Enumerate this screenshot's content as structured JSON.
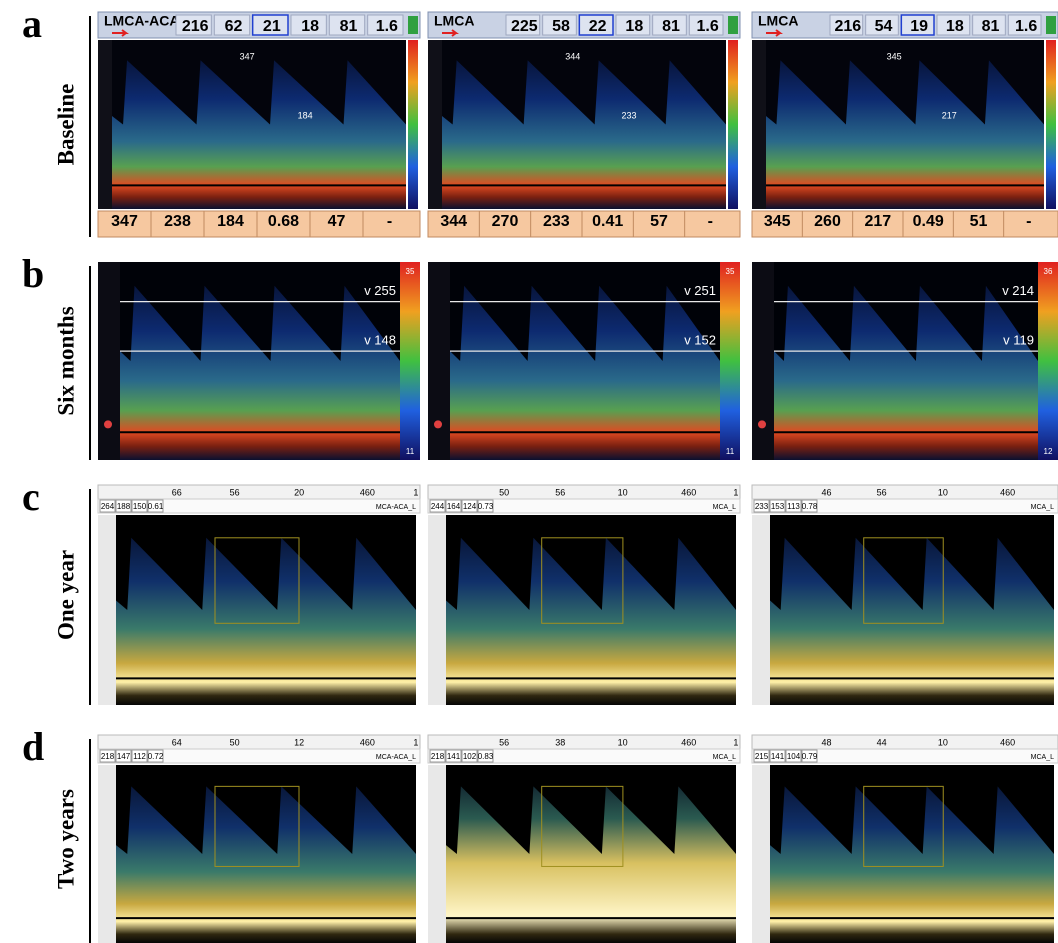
{
  "rows": [
    {
      "letter": "a",
      "label": "Baseline",
      "panels": [
        {
          "probe": "LMCA-ACA",
          "header": [
            216,
            62,
            21,
            18,
            81,
            1.6
          ],
          "footer": [
            347,
            238,
            184,
            0.68,
            47,
            "-"
          ],
          "marks": [
            347,
            184
          ]
        },
        {
          "probe": "LMCA",
          "header": [
            225,
            58,
            22,
            18,
            81,
            1.6
          ],
          "footer": [
            344,
            270,
            233,
            0.41,
            57,
            "-"
          ],
          "marks": [
            344,
            233
          ]
        },
        {
          "probe": "LMCA",
          "header": [
            216,
            54,
            19,
            18,
            81,
            1.6
          ],
          "footer": [
            345,
            260,
            217,
            0.49,
            51,
            "-"
          ],
          "marks": [
            345,
            217
          ]
        }
      ]
    },
    {
      "letter": "b",
      "label": "Six months",
      "panels": [
        {
          "lines": [
            "v 255",
            "v 148"
          ],
          "scale": [
            35,
            11
          ]
        },
        {
          "lines": [
            "v 251",
            "v 152"
          ],
          "scale": [
            35,
            11
          ]
        },
        {
          "lines": [
            "v 214",
            "v 119"
          ],
          "scale": [
            36,
            12
          ]
        }
      ]
    },
    {
      "letter": "c",
      "label": "One year",
      "panels": [
        {
          "settings": [
            66,
            56,
            20,
            460,
            1
          ],
          "readout": [
            264,
            188,
            150,
            0.61
          ],
          "vessel": "MCA-ACA_L"
        },
        {
          "settings": [
            50,
            56,
            10,
            460,
            1
          ],
          "readout": [
            244,
            164,
            124,
            0.73
          ],
          "vessel": "MCA_L"
        },
        {
          "settings": [
            46,
            56,
            10,
            460
          ],
          "readout": [
            233,
            153,
            113,
            0.78
          ],
          "vessel": "MCA_L"
        }
      ]
    },
    {
      "letter": "d",
      "label": "Two years",
      "panels": [
        {
          "settings": [
            64,
            50,
            12,
            460,
            1
          ],
          "readout": [
            218,
            147,
            112,
            0.72
          ],
          "vessel": "MCA-ACA_L"
        },
        {
          "settings": [
            56,
            38,
            10,
            460,
            1
          ],
          "readout": [
            218,
            141,
            102,
            0.83
          ],
          "vessel": "MCA_L"
        },
        {
          "settings": [
            48,
            44,
            10,
            460
          ],
          "readout": [
            215,
            141,
            104,
            0.79
          ],
          "vessel": "MCA_L"
        }
      ]
    }
  ]
}
